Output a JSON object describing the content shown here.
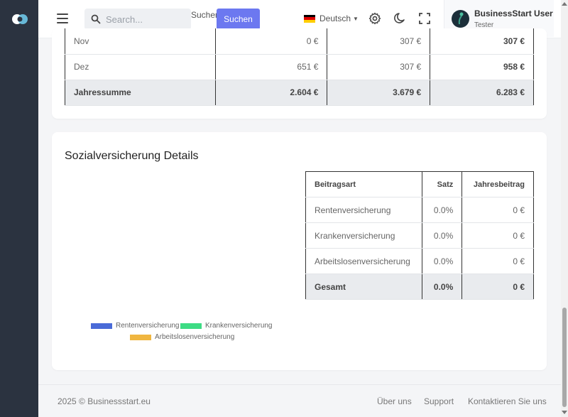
{
  "topbar": {
    "search_placeholder": "Search...",
    "search_label": "Suchen",
    "search_button": "Suchen",
    "language": "Deutsch",
    "user_name": "BusinessStart User",
    "user_role": "Tester"
  },
  "annual_table": {
    "rows": [
      {
        "month": "Nov",
        "a": "0 €",
        "b": "307 €",
        "total": "307 €"
      },
      {
        "month": "Dez",
        "a": "651 €",
        "b": "307 €",
        "total": "958 €"
      }
    ],
    "sum": {
      "label": "Jahressumme",
      "a": "2.604 €",
      "b": "3.679 €",
      "total": "6.283 €"
    }
  },
  "social": {
    "title": "Sozialversicherung Details",
    "headers": {
      "type": "Beitragsart",
      "rate": "Satz",
      "annual": "Jahresbeitrag"
    },
    "rows": [
      {
        "type": "Rentenversicherung",
        "rate": "0.0%",
        "annual": "0 €"
      },
      {
        "type": "Krankenversicherung",
        "rate": "0.0%",
        "annual": "0 €"
      },
      {
        "type": "Arbeitslosenversicherung",
        "rate": "0.0%",
        "annual": "0 €"
      }
    ],
    "sum": {
      "type": "Gesamt",
      "rate": "0.0%",
      "annual": "0 €"
    },
    "legend": [
      {
        "label": "Rentenversicherung",
        "color": "#4a6bd8"
      },
      {
        "label": "Krankenversicherung",
        "color": "#3ddc84"
      },
      {
        "label": "Arbeitslosenversicherung",
        "color": "#f0b640"
      }
    ]
  },
  "footer": {
    "copyright": "2025 © Businessstart.eu",
    "links": [
      "Über uns",
      "Support",
      "Kontaktieren Sie uns"
    ]
  },
  "colors": {
    "sidebar": "#2b3340",
    "accent_button": "#6c78f0"
  }
}
